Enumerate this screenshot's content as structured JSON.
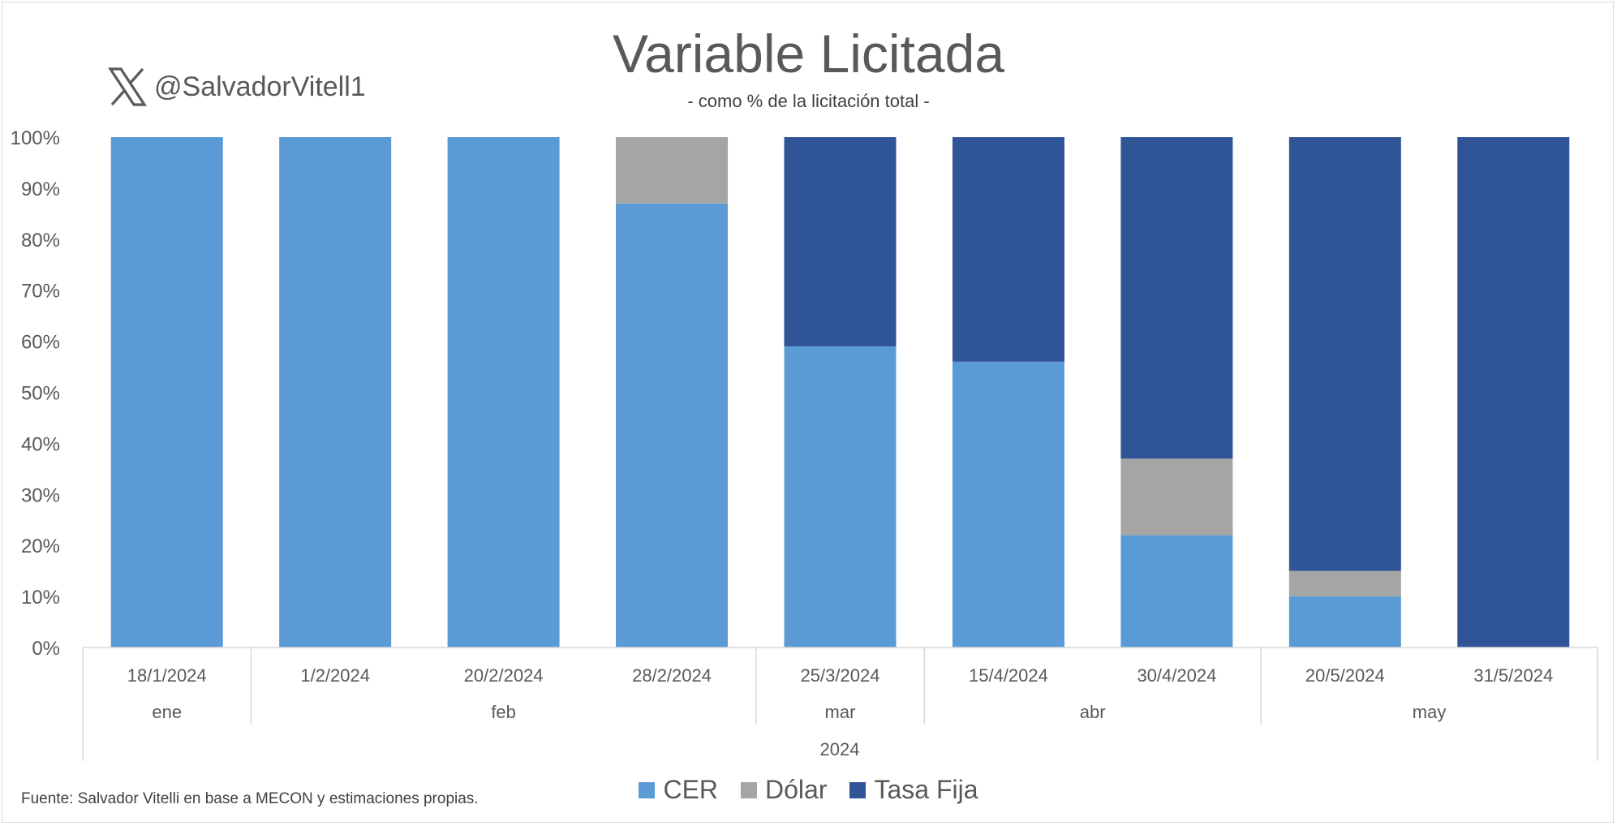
{
  "title": "Variable Licitada",
  "subtitle": "- como % de la licitación total -",
  "handle": {
    "icon": "x-logo-icon",
    "text": "@SalvadorVitell1"
  },
  "source": "Fuente: Salvador Vitelli en base a MECON y estimaciones propias.",
  "colors": {
    "CER": "#5b9bd5",
    "Dólar": "#a5a5a5",
    "Tasa Fija": "#2f5597",
    "axis": "#d9d9d9",
    "text": "#595959"
  },
  "chart_data": {
    "type": "bar",
    "stacked": true,
    "title": "Variable Licitada",
    "subtitle": "- como % de la licitación total -",
    "categories": [
      "18/1/2024",
      "1/2/2024",
      "20/2/2024",
      "28/2/2024",
      "25/3/2024",
      "15/4/2024",
      "30/4/2024",
      "20/5/2024",
      "31/5/2024"
    ],
    "months": [
      {
        "label": "ene",
        "count": 1
      },
      {
        "label": "feb",
        "count": 3
      },
      {
        "label": "mar",
        "count": 1
      },
      {
        "label": "abr",
        "count": 2
      },
      {
        "label": "may",
        "count": 2
      }
    ],
    "year": "2024",
    "series": [
      {
        "name": "CER",
        "values": [
          100,
          100,
          100,
          87,
          59,
          56,
          22,
          10,
          0
        ]
      },
      {
        "name": "Dólar",
        "values": [
          0,
          0,
          0,
          13,
          0,
          0,
          15,
          5,
          0
        ]
      },
      {
        "name": "Tasa Fija",
        "values": [
          0,
          0,
          0,
          0,
          41,
          44,
          63,
          85,
          100
        ]
      }
    ],
    "ylim": [
      0,
      100
    ],
    "yticks": [
      "0%",
      "10%",
      "20%",
      "30%",
      "40%",
      "50%",
      "60%",
      "70%",
      "80%",
      "90%",
      "100%"
    ],
    "grid": false,
    "legend": "bottom"
  }
}
